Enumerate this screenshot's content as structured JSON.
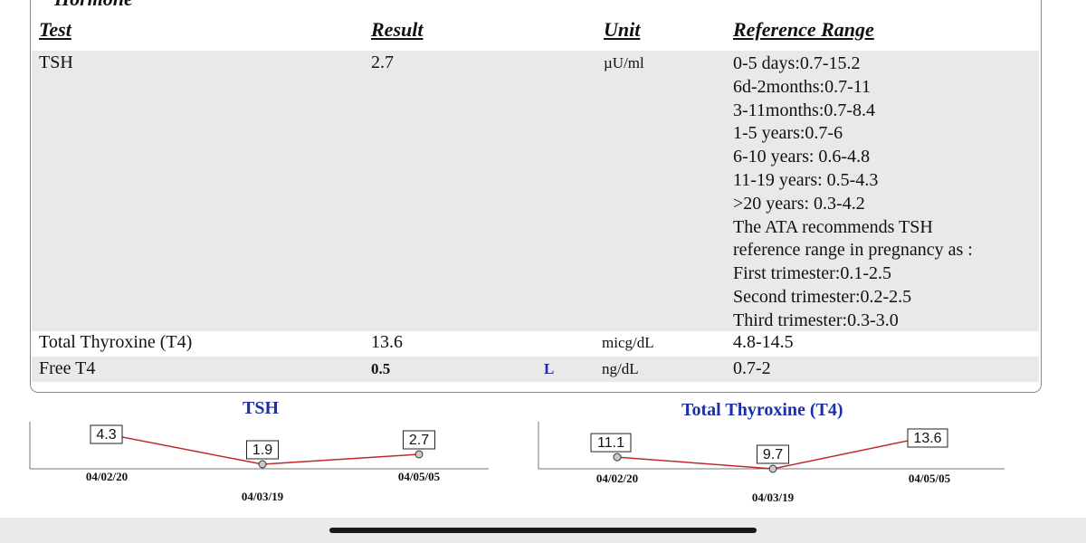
{
  "section": {
    "title": "Hormone"
  },
  "table": {
    "headers": {
      "test": "Test",
      "result": "Result",
      "unit": "Unit",
      "reference": "Reference Range"
    },
    "rows": [
      {
        "test": "TSH",
        "result": "2.7",
        "flag": "",
        "unit": "µU/ml",
        "reference": [
          "0-5 days:0.7-15.2",
          "6d-2months:0.7-11",
          "3-11months:0.7-8.4",
          "1-5 years:0.7-6",
          "6-10 years: 0.6-4.8",
          "11-19 years: 0.5-4.3",
          ">20 years: 0.3-4.2",
          "The ATA recommends TSH",
          "reference range in pregnancy as :",
          "First trimester:0.1-2.5",
          "Second trimester:0.2-2.5",
          "Third trimester:0.3-3.0"
        ]
      },
      {
        "test": "Total Thyroxine (T4)",
        "result": "13.6",
        "flag": "",
        "unit": "micg/dL",
        "reference": [
          "4.8-14.5"
        ]
      },
      {
        "test": "Free T4",
        "result": "0.5",
        "flag": "L",
        "unit": "ng/dL",
        "reference": [
          "0.7-2"
        ]
      }
    ]
  },
  "chart_data": [
    {
      "type": "line",
      "title": "TSH",
      "x": [
        "04/02/20",
        "04/03/19",
        "04/05/05"
      ],
      "series": [
        {
          "values": [
            4.3,
            1.9,
            2.7
          ]
        }
      ],
      "line_color": "#c0292b"
    },
    {
      "type": "line",
      "title": "Total Thyroxine (T4)",
      "x": [
        "04/02/20",
        "04/03/19",
        "04/05/05"
      ],
      "series": [
        {
          "values": [
            11.1,
            9.7,
            13.6
          ]
        }
      ],
      "line_color": "#c0292b"
    }
  ]
}
